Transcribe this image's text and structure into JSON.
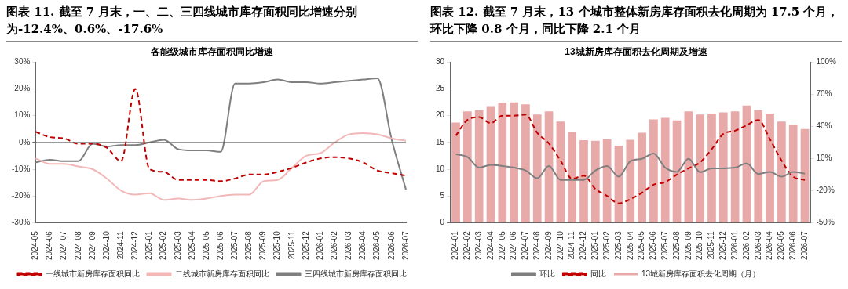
{
  "chart_data": [
    {
      "type": "line",
      "title": "图表 11. 截至 7 月末，一、二、三四线城市库存面积同比增速分别为-12.4%、0.6%、-17.6%",
      "subtitle": "各能级城市库存面积同比增速",
      "categories": [
        "2024-05",
        "2024-06",
        "2024-07",
        "2024-08",
        "2024-09",
        "2024-10",
        "2024-11",
        "2024-12",
        "2025-01",
        "2025-02",
        "2025-03",
        "2025-04",
        "2025-05",
        "2025-06",
        "2025-07",
        "2025-08",
        "2025-09",
        "2025-10",
        "2025-11",
        "2025-12",
        "2026-01",
        "2026-02",
        "2026-03",
        "2026-04",
        "2026-05",
        "2026-06",
        "2026-07"
      ],
      "series": [
        {
          "name": "一线城市新房库存面积同比",
          "color": "#c00000",
          "line_style": "dashed",
          "values": [
            4,
            2,
            1.5,
            -0.5,
            -0.5,
            -2,
            -7,
            20,
            -10,
            -11,
            -14,
            -14,
            -14,
            -14.5,
            -13.5,
            -12,
            -12,
            -11,
            -9.5,
            -7.5,
            -6,
            -5.5,
            -6,
            -7.5,
            -10.5,
            -11.5,
            -12.4
          ]
        },
        {
          "name": "二线城市新房库存面积同比",
          "color": "#f2b8b8",
          "line_style": "solid",
          "values": [
            -6,
            -8,
            -8,
            -9,
            -10,
            -13.5,
            -18,
            -19.5,
            -19,
            -21.5,
            -21,
            -21.5,
            -21,
            -20,
            -19.5,
            -19.5,
            -14.5,
            -14,
            -9.5,
            -5,
            -4,
            0,
            3,
            3.5,
            3,
            1.5,
            0.6
          ]
        },
        {
          "name": "三四线城市新房库存面积同比",
          "color": "#7f7f7f",
          "line_style": "solid",
          "values": [
            -7.5,
            -6.5,
            -7,
            -7,
            -0.5,
            -1.5,
            -1,
            -1,
            0,
            1,
            -2.5,
            -3,
            -3,
            -3.5,
            22,
            22,
            22.5,
            23.5,
            22.5,
            22.5,
            22,
            22.5,
            23,
            23.5,
            24,
            1,
            -17.6
          ]
        }
      ],
      "ylim": [
        -30,
        30
      ],
      "yticks": [
        {
          "value": -30,
          "label": "-30%"
        },
        {
          "value": -20,
          "label": "-20%"
        },
        {
          "value": -10,
          "label": "-10%"
        },
        {
          "value": 0,
          "label": "0%"
        },
        {
          "value": 10,
          "label": "10%"
        },
        {
          "value": 20,
          "label": "20%"
        },
        {
          "value": 30,
          "label": "30%"
        }
      ],
      "marker": "none",
      "legend": "bottom"
    },
    {
      "type": "bar",
      "title": "图表 12. 截至 7 月末，13 个城市整体新房库存面积去化周期为 17.5 个月，环比下降 0.8 个月，同比下降 2.1 个月",
      "subtitle": "13城新房库存面积去化周期及增速",
      "categories": [
        "2024-01",
        "2024-02",
        "2024-03",
        "2024-04",
        "2024-05",
        "2024-06",
        "2024-07",
        "2024-08",
        "2024-09",
        "2024-10",
        "2024-11",
        "2024-12",
        "2025-01",
        "2025-02",
        "2025-03",
        "2025-04",
        "2025-05",
        "2025-06",
        "2025-07",
        "2025-08",
        "2025-09",
        "2025-10",
        "2025-11",
        "2025-12",
        "2026-01",
        "2026-02",
        "2026-03",
        "2026-04",
        "2026-05",
        "2026-06",
        "2026-07"
      ],
      "series": [
        {
          "name": "13城新房库存面积去化周期（月）",
          "color": "#e8a9a9",
          "values": [
            18.7,
            20.8,
            21,
            21.8,
            22.4,
            22.5,
            22.1,
            20.2,
            20.8,
            18.9,
            17,
            15.4,
            15.3,
            15.6,
            14.4,
            15.5,
            16.8,
            19.3,
            19.6,
            19.1,
            20.8,
            20.2,
            20.4,
            20.6,
            20.8,
            21.9,
            21,
            20.4,
            18.9,
            18.3,
            17.5
          ]
        },
        {
          "name": "环比",
          "type": "line",
          "axis": "y2",
          "color": "#7f7f7f",
          "line_style": "solid",
          "values": [
            14,
            11.4,
            1.4,
            4,
            3,
            1.4,
            -1.2,
            -8.5,
            3,
            -10,
            -10,
            -10,
            -1.2,
            3,
            -7,
            7.4,
            9.7,
            14.7,
            1.4,
            -2.5,
            9.7,
            -2.9,
            0.8,
            0.8,
            1.4,
            5.4,
            -4.5,
            -2.5,
            -7,
            -2.5,
            -4.2
          ]
        },
        {
          "name": "同比",
          "type": "line",
          "axis": "y2",
          "color": "#c00000",
          "line_style": "dashed",
          "values": [
            31.3,
            46,
            48.6,
            43,
            50,
            50,
            51,
            34,
            24,
            8,
            -9,
            -6,
            -18.5,
            -25,
            -32,
            -28,
            -22,
            -14.5,
            -12,
            -5,
            0.8,
            6.4,
            18.7,
            33,
            36,
            41,
            46,
            28,
            8,
            -7,
            -10
          ]
        }
      ],
      "ylim": [
        0,
        30
      ],
      "yticks": [
        0,
        5,
        10,
        15,
        20,
        25,
        30
      ],
      "y2lim": [
        -50,
        100
      ],
      "y2ticks": [
        {
          "value": -50,
          "label": "-50%"
        },
        {
          "value": -20,
          "label": "-20%"
        },
        {
          "value": 10,
          "label": "10%"
        },
        {
          "value": 40,
          "label": "40%"
        },
        {
          "value": 70,
          "label": "70%"
        },
        {
          "value": 100,
          "label": "100%"
        }
      ],
      "marker": "none",
      "legend": "bottom"
    }
  ]
}
